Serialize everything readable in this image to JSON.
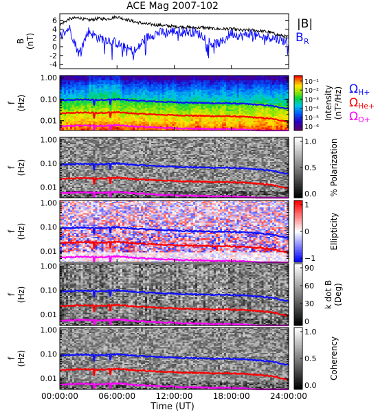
{
  "title": "ACE Mag 2007-102",
  "colors": {
    "B_total": "#000000",
    "B_R": "#1010ff",
    "omega_h": "#1010ff",
    "omega_he": "#ff0000",
    "omega_o": "#ff00ff"
  },
  "chart_data": [
    {
      "type": "line",
      "ylabel": "B\n(nT)",
      "ylim": [
        -5,
        7.5
      ],
      "yticks": [
        "6",
        "4",
        "2",
        "0",
        "-2",
        "-4"
      ],
      "legend": {
        "B_total": "|B|",
        "B_R": "B",
        "B_R_sub": "R"
      },
      "x_hours": [
        0,
        1,
        2,
        3,
        4,
        5,
        6,
        7,
        8,
        9,
        10,
        11,
        12,
        13,
        14,
        15,
        16,
        17,
        18,
        19,
        20,
        21,
        22,
        23,
        24
      ],
      "series": [
        {
          "key": "B_total",
          "values": [
            5.0,
            6.3,
            6.6,
            6.0,
            6.4,
            6.3,
            6.8,
            6.2,
            5.6,
            5.2,
            5.0,
            4.8,
            4.6,
            4.5,
            4.3,
            4.4,
            4.1,
            4.0,
            4.1,
            3.7,
            3.8,
            3.6,
            3.3,
            2.6,
            2.2
          ]
        },
        {
          "key": "B_R",
          "values": [
            2.2,
            4.3,
            -1.6,
            3.6,
            2.0,
            1.6,
            0.8,
            -0.5,
            -1.0,
            2.0,
            3.0,
            3.3,
            3.5,
            3.4,
            3.3,
            2.6,
            0.5,
            1.0,
            3.2,
            2.4,
            3.0,
            2.0,
            2.2,
            1.7,
            1.0
          ]
        }
      ]
    },
    {
      "type": "heatmap",
      "ylabel": "f\n(Hz)",
      "yticks": [
        "1.00",
        "0.10",
        "0.01"
      ],
      "colorbar_label": "Intensity\n(nT²/Hz)",
      "colorbar_ticks": [
        "10⁻¹",
        "10⁻²",
        "10⁻³",
        "10⁻⁴",
        "10⁻⁵",
        "10⁻⁶"
      ],
      "colormap": "rainbow",
      "curves": [
        "omega_h",
        "omega_he",
        "omega_o"
      ],
      "curve_labels": [
        {
          "key": "omega_h",
          "symbol": "Ω",
          "sub": "H+"
        },
        {
          "key": "omega_he",
          "symbol": "Ω",
          "sub": "He+"
        },
        {
          "key": "omega_o",
          "symbol": "Ω",
          "sub": "O+"
        }
      ]
    },
    {
      "type": "heatmap",
      "ylabel": "f\n(Hz)",
      "yticks": [
        "1.00",
        "0.10",
        "0.01"
      ],
      "colorbar_label": "% Polarization",
      "colorbar_ticks": [
        "1.0",
        "0.5",
        "0.0"
      ],
      "colormap": "gray",
      "curves": [
        "omega_h",
        "omega_he",
        "omega_o"
      ]
    },
    {
      "type": "heatmap",
      "ylabel": "f\n(Hz)",
      "yticks": [
        "1.00",
        "0.10",
        "0.01"
      ],
      "colorbar_label": "Ellipticity",
      "colorbar_ticks": [
        "1",
        "0",
        "−1"
      ],
      "colormap": "bwr",
      "curves": [
        "omega_h",
        "omega_he",
        "omega_o"
      ]
    },
    {
      "type": "heatmap",
      "ylabel": "f\n(Hz)",
      "yticks": [
        "1.00",
        "0.10",
        "0.01"
      ],
      "colorbar_label": "k dot B\n(Deg)",
      "colorbar_ticks": [
        "90",
        "60",
        "30",
        "0"
      ],
      "colormap": "gray",
      "curves": [
        "omega_h",
        "omega_he",
        "omega_o"
      ]
    },
    {
      "type": "heatmap",
      "ylabel": "f\n(Hz)",
      "yticks": [
        "1.00",
        "0.10",
        "0.01"
      ],
      "colorbar_label": "Coherency",
      "colorbar_ticks": [
        "1.0",
        "0.5",
        "0.0"
      ],
      "colormap": "gray",
      "curves": [
        "omega_h",
        "omega_he",
        "omega_o"
      ]
    }
  ],
  "gyrofrequency_hz": {
    "x_hours": [
      0,
      2,
      4,
      6,
      8,
      10,
      12,
      14,
      16,
      18,
      20,
      22,
      24
    ],
    "omega_h": [
      0.085,
      0.095,
      0.092,
      0.098,
      0.085,
      0.077,
      0.072,
      0.068,
      0.065,
      0.064,
      0.058,
      0.05,
      0.035
    ]
  },
  "xaxis": {
    "label": "Time (UT)",
    "ticks": [
      "00:00:00",
      "06:00:00",
      "12:00:00",
      "18:00:00",
      "24:00:00"
    ]
  }
}
